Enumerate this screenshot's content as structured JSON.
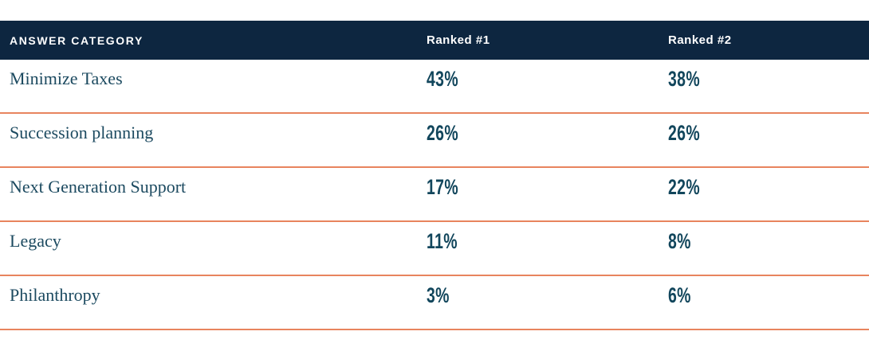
{
  "table": {
    "columns": [
      {
        "label": "ANSWER CATEGORY"
      },
      {
        "label": "Ranked #1"
      },
      {
        "label": "Ranked #2"
      }
    ],
    "rows": [
      {
        "category": "Minimize Taxes",
        "ranked1": "43%",
        "ranked2": "38%"
      },
      {
        "category": "Succession planning",
        "ranked1": "26%",
        "ranked2": "26%"
      },
      {
        "category": "Next Generation Support",
        "ranked1": "17%",
        "ranked2": "22%"
      },
      {
        "category": "Legacy",
        "ranked1": "11%",
        "ranked2": "8%"
      },
      {
        "category": "Philanthropy",
        "ranked1": "3%",
        "ranked2": "6%"
      }
    ]
  },
  "colors": {
    "header_bg": "#0d2640",
    "header_text": "#ffffff",
    "category_text": "#1c4a60",
    "value_text": "#12465c",
    "divider": "#e8845e",
    "background": "#ffffff"
  },
  "chart_data": {
    "type": "table",
    "title": "",
    "columns": [
      "ANSWER CATEGORY",
      "Ranked #1",
      "Ranked #2"
    ],
    "categories": [
      "Minimize Taxes",
      "Succession planning",
      "Next Generation Support",
      "Legacy",
      "Philanthropy"
    ],
    "series": [
      {
        "name": "Ranked #1",
        "values": [
          43,
          26,
          17,
          11,
          3
        ]
      },
      {
        "name": "Ranked #2",
        "values": [
          38,
          26,
          22,
          8,
          6
        ]
      }
    ],
    "value_unit": "%",
    "layout": {
      "grid": "horizontal-rules",
      "header_style": "dark-navy-band",
      "rule_color": "coral"
    }
  }
}
